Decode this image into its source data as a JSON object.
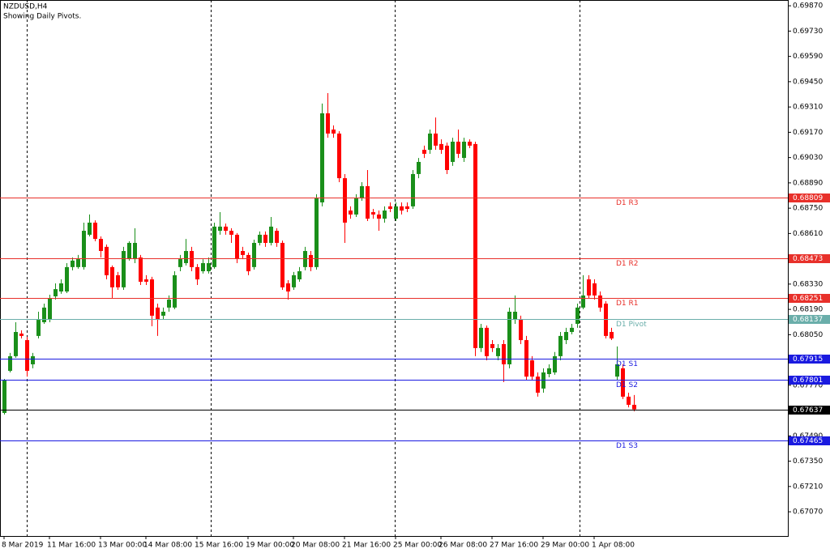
{
  "chart_data": {
    "type": "candlestick",
    "title": "NZDUSD,H4",
    "subtitle": "Showing Daily Pivots.",
    "up_color": "#1a8f1a",
    "down_color": "#ff0000",
    "ylim": [
      0.66936,
      0.69902
    ],
    "yticks": [
      {
        "value": 0.6987,
        "label": "0.69870"
      },
      {
        "value": 0.6973,
        "label": "0.69730"
      },
      {
        "value": 0.6959,
        "label": "0.69590"
      },
      {
        "value": 0.6945,
        "label": "0.69450"
      },
      {
        "value": 0.6931,
        "label": "0.69310"
      },
      {
        "value": 0.6917,
        "label": "0.69170"
      },
      {
        "value": 0.6903,
        "label": "0.69030"
      },
      {
        "value": 0.6889,
        "label": "0.68890"
      },
      {
        "value": 0.6875,
        "label": "0.68750"
      },
      {
        "value": 0.6861,
        "label": "0.68610"
      },
      {
        "value": 0.6847,
        "label": "0.68470"
      },
      {
        "value": 0.6833,
        "label": "0.68330"
      },
      {
        "value": 0.6819,
        "label": "0.68190"
      },
      {
        "value": 0.6805,
        "label": "0.68050"
      },
      {
        "value": 0.6791,
        "label": "0.67910"
      },
      {
        "value": 0.6777,
        "label": "0.67770"
      },
      {
        "value": 0.6763,
        "label": "0.67630"
      },
      {
        "value": 0.6749,
        "label": "0.67490"
      },
      {
        "value": 0.6735,
        "label": "0.67350"
      },
      {
        "value": 0.6721,
        "label": "0.67210"
      },
      {
        "value": 0.6707,
        "label": "0.67070"
      }
    ],
    "categories": [
      "8 Mar 2019",
      null,
      null,
      null,
      null,
      null,
      null,
      null,
      "11 Mar 16:00",
      null,
      null,
      null,
      null,
      null,
      null,
      null,
      null,
      "13 Mar 00:00",
      null,
      null,
      null,
      null,
      null,
      null,
      null,
      "14 Mar 08:00",
      null,
      null,
      null,
      null,
      null,
      null,
      null,
      null,
      "15 Mar 16:00",
      null,
      null,
      null,
      null,
      null,
      null,
      null,
      null,
      "19 Mar 00:00",
      null,
      null,
      null,
      null,
      null,
      null,
      null,
      "20 Mar 08:00",
      null,
      null,
      null,
      null,
      null,
      null,
      null,
      null,
      "21 Mar 16:00",
      null,
      null,
      null,
      null,
      null,
      null,
      null,
      null,
      "25 Mar 00:00",
      null,
      null,
      null,
      null,
      null,
      null,
      null,
      "26 Mar 08:00",
      null,
      null,
      null,
      null,
      null,
      null,
      null,
      null,
      "27 Mar 16:00",
      null,
      null,
      null,
      null,
      null,
      null,
      null,
      null,
      "29 Mar 00:00",
      null,
      null,
      null,
      null,
      null,
      null,
      null,
      null,
      "1 Apr 08:00",
      null,
      null,
      null,
      null,
      null,
      null,
      null
    ],
    "open": [
      0.67617,
      0.6785,
      0.67931,
      0.68056,
      0.6802,
      0.67886,
      0.68043,
      0.68119,
      0.68132,
      0.68262,
      0.68289,
      0.68289,
      0.68424,
      0.68424,
      0.68424,
      0.68603,
      0.6867,
      0.6858,
      0.68536,
      0.68424,
      0.68379,
      0.68312,
      0.68468,
      0.68468,
      0.68477,
      0.68356,
      0.68356,
      0.682,
      0.68155,
      0.682,
      0.682,
      0.68424,
      0.68446,
      0.68513,
      0.68424,
      0.68401,
      0.68401,
      0.68424,
      0.68625,
      0.68648,
      0.68625,
      0.68603,
      0.68513,
      0.68491,
      0.68424,
      0.68558,
      0.68603,
      0.68558,
      0.68625,
      0.68558,
      0.68334,
      0.68312,
      0.68356,
      0.68424,
      0.68491,
      0.68424,
      0.68782,
      0.69275,
      0.69185,
      0.69163,
      0.68916,
      0.68737,
      0.68715,
      0.68804,
      0.68872,
      0.68728,
      0.68715,
      0.68692,
      0.6876,
      0.68692,
      0.6876,
      0.6876,
      0.6876,
      0.68939,
      0.69073,
      0.69073,
      0.69163,
      0.69105,
      0.69096,
      0.69006,
      0.69118,
      0.69028,
      0.69118,
      0.69105,
      0.67976,
      0.68088,
      0.67998,
      0.67931,
      0.67998,
      0.67886,
      0.68132,
      0.68132,
      0.6802,
      0.67908,
      0.67818,
      0.67752,
      0.67832,
      0.67841,
      0.67931,
      0.6802,
      0.68065,
      0.6811,
      0.682,
      0.68356,
      0.68334,
      0.68267,
      0.68222,
      0.68065,
      0.67818,
      0.67864,
      0.67707,
      0.67662
    ],
    "high": [
      0.67805,
      0.67949,
      0.68119,
      0.68074,
      0.68038,
      0.67949,
      0.68177,
      0.68222,
      0.68271,
      0.68334,
      0.68356,
      0.68446,
      0.68477,
      0.68491,
      0.6867,
      0.68715,
      0.68683,
      0.68594,
      0.68549,
      0.68433,
      0.68397,
      0.68536,
      0.68567,
      0.68639,
      0.68491,
      0.68379,
      0.6837,
      0.68222,
      0.682,
      0.68267,
      0.68401,
      0.68491,
      0.6858,
      0.68536,
      0.68441,
      0.68468,
      0.68477,
      0.6867,
      0.68728,
      0.68665,
      0.68639,
      0.68612,
      0.68536,
      0.68504,
      0.68576,
      0.68621,
      0.68621,
      0.68701,
      0.68639,
      0.68571,
      0.68352,
      0.68397,
      0.68424,
      0.68536,
      0.68513,
      0.68827,
      0.69329,
      0.69387,
      0.69208,
      0.69176,
      0.68939,
      0.6876,
      0.68827,
      0.68894,
      0.68961,
      0.68746,
      0.68737,
      0.6876,
      0.68782,
      0.68782,
      0.68782,
      0.68782,
      0.68961,
      0.69028,
      0.69096,
      0.69185,
      0.69252,
      0.69131,
      0.69113,
      0.6914,
      0.69185,
      0.6914,
      0.69131,
      0.69118,
      0.6811,
      0.68101,
      0.6802,
      0.67998,
      0.6802,
      0.682,
      0.68267,
      0.68155,
      0.68043,
      0.67931,
      0.67841,
      0.67864,
      0.67886,
      0.67954,
      0.68065,
      0.68088,
      0.6811,
      0.68222,
      0.68379,
      0.68379,
      0.68356,
      0.68289,
      0.68236,
      0.68088,
      0.67985,
      0.67886,
      0.67729,
      0.67716
    ],
    "low": [
      0.67608,
      0.67841,
      0.67922,
      0.68029,
      0.67818,
      0.67864,
      0.68029,
      0.6811,
      0.68119,
      0.68244,
      0.68276,
      0.6828,
      0.68406,
      0.68415,
      0.6841,
      0.68594,
      0.68567,
      0.68477,
      0.68356,
      0.68253,
      0.68298,
      0.68298,
      0.6846,
      0.68446,
      0.68325,
      0.68325,
      0.68097,
      0.68043,
      0.68132,
      0.68177,
      0.68191,
      0.68401,
      0.68433,
      0.68401,
      0.68325,
      0.68388,
      0.68388,
      0.68415,
      0.68603,
      0.68603,
      0.68558,
      0.68446,
      0.68468,
      0.68379,
      0.6841,
      0.68544,
      0.68536,
      0.68544,
      0.68536,
      0.68298,
      0.68244,
      0.68298,
      0.68343,
      0.68406,
      0.68401,
      0.6841,
      0.6876,
      0.6914,
      0.6914,
      0.68894,
      0.68558,
      0.68692,
      0.68701,
      0.68791,
      0.68679,
      0.68692,
      0.68625,
      0.6867,
      0.68728,
      0.68679,
      0.68715,
      0.68728,
      0.68746,
      0.68916,
      0.69028,
      0.69051,
      0.69073,
      0.69051,
      0.68939,
      0.68984,
      0.69028,
      0.69006,
      0.69082,
      0.67931,
      0.67954,
      0.67908,
      0.67954,
      0.67908,
      0.67788,
      0.67864,
      0.6811,
      0.67998,
      0.67796,
      0.67796,
      0.67707,
      0.67729,
      0.67814,
      0.67828,
      0.67908,
      0.67998,
      0.68052,
      0.68088,
      0.68191,
      0.68253,
      0.68244,
      0.68177,
      0.68029,
      0.6802,
      0.67796,
      0.67694,
      0.67648,
      0.67626
    ],
    "close": [
      0.67796,
      0.67931,
      0.68065,
      0.68043,
      0.6785,
      0.67931,
      0.68132,
      0.682,
      0.68253,
      0.68302,
      0.68334,
      0.68424,
      0.6846,
      0.68468,
      0.68625,
      0.6867,
      0.6858,
      0.68513,
      0.68379,
      0.68312,
      0.68312,
      0.68513,
      0.68558,
      0.68558,
      0.68343,
      0.68343,
      0.68155,
      0.68132,
      0.68177,
      0.68244,
      0.68379,
      0.68468,
      0.68513,
      0.68424,
      0.68356,
      0.68446,
      0.68446,
      0.68648,
      0.68648,
      0.68625,
      0.68603,
      0.68468,
      0.68491,
      0.68401,
      0.68558,
      0.68603,
      0.68558,
      0.68648,
      0.68558,
      0.68312,
      0.68289,
      0.68379,
      0.68401,
      0.68513,
      0.68424,
      0.68804,
      0.69275,
      0.69163,
      0.69163,
      0.68916,
      0.6867,
      0.68715,
      0.68804,
      0.68872,
      0.68692,
      0.68715,
      0.68692,
      0.68737,
      0.68746,
      0.6876,
      0.68737,
      0.68746,
      0.68939,
      0.69006,
      0.69051,
      0.69163,
      0.69096,
      0.69073,
      0.68961,
      0.69118,
      0.69051,
      0.69118,
      0.69096,
      0.67976,
      0.68088,
      0.67931,
      0.67976,
      0.67976,
      0.67886,
      0.68177,
      0.68177,
      0.6802,
      0.67818,
      0.67818,
      0.67729,
      0.67841,
      0.67864,
      0.67931,
      0.68043,
      0.68065,
      0.68088,
      0.682,
      0.68267,
      0.68267,
      0.68267,
      0.682,
      0.68043,
      0.68029,
      0.67886,
      0.67707,
      0.67662,
      0.67637
    ],
    "levels": [
      {
        "name": "D1 R3",
        "value": 0.68809,
        "label": "0.68809",
        "color": "#e8302a"
      },
      {
        "name": "D1 R2",
        "value": 0.68473,
        "label": "0.68473",
        "color": "#e8302a"
      },
      {
        "name": "D1 R1",
        "value": 0.68251,
        "label": "0.68251",
        "color": "#e8302a"
      },
      {
        "name": "D1 Pivot",
        "value": 0.68137,
        "label": "0.68137",
        "color": "#6aaeaa"
      },
      {
        "name": "D1 S1",
        "value": 0.67915,
        "label": "0.67915",
        "color": "#1a1ae0"
      },
      {
        "name": "D1 S2",
        "value": 0.67801,
        "label": "0.67801",
        "color": "#1a1ae0"
      },
      {
        "name": "D1 S3",
        "value": 0.67465,
        "label": "0.67465",
        "color": "#1a1ae0"
      }
    ],
    "current_price": {
      "value": 0.67637,
      "label": "0.67637",
      "color": "#000000"
    }
  }
}
